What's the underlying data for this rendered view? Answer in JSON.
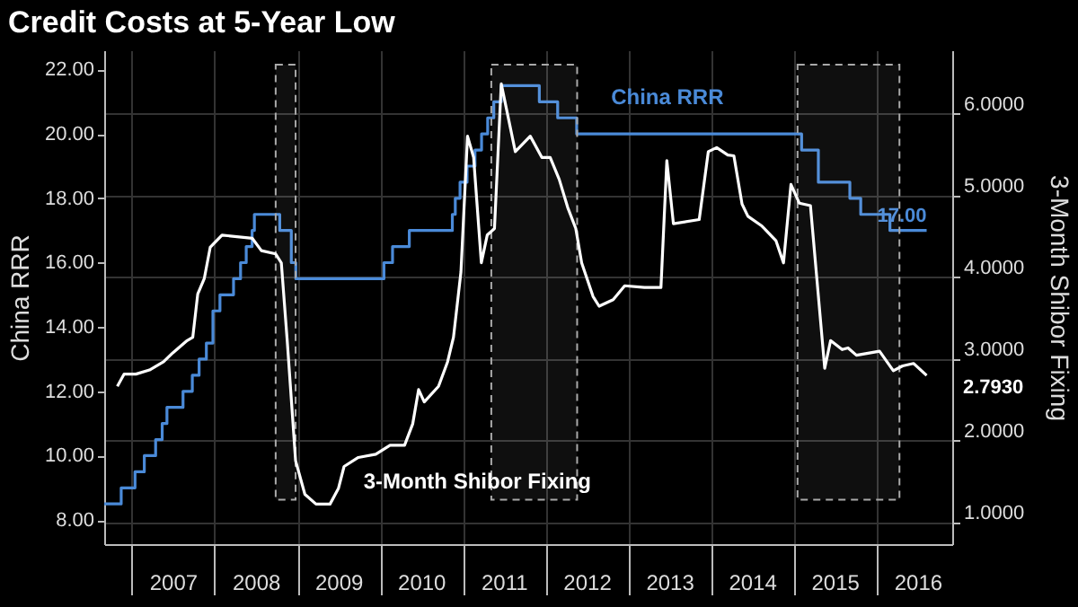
{
  "chart_data": {
    "type": "line",
    "title": "Credit Costs at 5-Year Low",
    "ylabel": "China RRR",
    "y2label": "3-Month Shibor Fixing",
    "xlim": [
      "2006-09-01",
      "2016-12-01"
    ],
    "xticks": [
      {
        "value": "2007-01-01",
        "label": null
      },
      {
        "value": "2007-07-01",
        "label": "2007"
      },
      {
        "value": "2008-01-01",
        "label": null
      },
      {
        "value": "2008-07-01",
        "label": "2008"
      },
      {
        "value": "2009-01-01",
        "label": null
      },
      {
        "value": "2009-07-01",
        "label": "2009"
      },
      {
        "value": "2010-01-01",
        "label": null
      },
      {
        "value": "2010-07-01",
        "label": "2010"
      },
      {
        "value": "2011-01-01",
        "label": null
      },
      {
        "value": "2011-07-01",
        "label": "2011"
      },
      {
        "value": "2012-01-01",
        "label": null
      },
      {
        "value": "2012-07-01",
        "label": "2012"
      },
      {
        "value": "2013-01-01",
        "label": null
      },
      {
        "value": "2013-07-01",
        "label": "2013"
      },
      {
        "value": "2014-01-01",
        "label": null
      },
      {
        "value": "2014-07-01",
        "label": "2014"
      },
      {
        "value": "2015-01-01",
        "label": null
      },
      {
        "value": "2015-07-01",
        "label": "2015"
      },
      {
        "value": "2016-01-01",
        "label": null
      },
      {
        "value": "2016-07-01",
        "label": "2016"
      }
    ],
    "ylim": [
      7.25,
      22.6
    ],
    "yticks": [
      {
        "value": 8,
        "label": "8.00"
      },
      {
        "value": 10,
        "label": "10.00"
      },
      {
        "value": 12,
        "label": "12.00"
      },
      {
        "value": 14,
        "label": "14.00"
      },
      {
        "value": 16,
        "label": "16.00"
      },
      {
        "value": 18,
        "label": "18.00"
      },
      {
        "value": 20,
        "label": "20.00"
      },
      {
        "value": 22,
        "label": "22.00"
      }
    ],
    "y2lim": [
      0.73,
      6.77
    ],
    "y2ticks": [
      {
        "value": 1,
        "label": "1.0000"
      },
      {
        "value": 2,
        "label": "2.0000"
      },
      {
        "value": 3,
        "label": "3.0000"
      },
      {
        "value": 4,
        "label": "4.0000"
      },
      {
        "value": 5,
        "label": "5.0000"
      },
      {
        "value": 6,
        "label": "6.0000"
      }
    ],
    "grid": true,
    "bands": [
      {
        "axis": "x",
        "from": "2008-09-27",
        "to": "2008-12-24"
      },
      {
        "axis": "x",
        "from": "2011-05-07",
        "to": "2012-05-20"
      },
      {
        "axis": "x",
        "from": "2015-01-18",
        "to": "2016-04-12"
      }
    ],
    "series": [
      {
        "name": "China RRR",
        "type": "step",
        "color": "#4a8ad8",
        "x": [
          "2006-09-01",
          "2006-11-15",
          "2007-01-15",
          "2007-02-25",
          "2007-04-16",
          "2007-05-15",
          "2007-06-05",
          "2007-08-15",
          "2007-09-25",
          "2007-10-25",
          "2007-11-26",
          "2007-12-25",
          "2008-01-25",
          "2008-03-25",
          "2008-04-25",
          "2008-05-20",
          "2008-06-15",
          "2008-06-25",
          "2008-10-15",
          "2008-12-05",
          "2008-12-25",
          "2010-01-18",
          "2010-02-25",
          "2010-05-10",
          "2010-11-16",
          "2010-11-29",
          "2010-12-20",
          "2011-01-20",
          "2011-02-24",
          "2011-03-25",
          "2011-04-21",
          "2011-05-18",
          "2011-06-20",
          "2011-12-05",
          "2012-02-24",
          "2012-05-18",
          "2015-02-05",
          "2015-04-20",
          "2015-09-06",
          "2015-10-24",
          "2016-03-01",
          "2016-08-10"
        ],
        "values": [
          8.5,
          9.0,
          9.5,
          10.0,
          10.5,
          11.0,
          11.5,
          12.0,
          12.5,
          13.0,
          13.5,
          14.5,
          15.0,
          15.5,
          16.0,
          16.5,
          17.0,
          17.5,
          17.0,
          16.0,
          15.5,
          16.0,
          16.5,
          17.0,
          17.5,
          18.0,
          18.5,
          19.0,
          19.5,
          20.0,
          20.5,
          21.0,
          21.5,
          21.0,
          20.5,
          20.0,
          19.5,
          18.5,
          18.0,
          17.5,
          17.0,
          17.0
        ],
        "value_labels": [
          null,
          null,
          null,
          null,
          null,
          null,
          null,
          null,
          null,
          null,
          null,
          null,
          null,
          null,
          null,
          null,
          null,
          null,
          null,
          null,
          null,
          null,
          null,
          null,
          null,
          null,
          null,
          null,
          null,
          null,
          null,
          null,
          null,
          null,
          null,
          null,
          null,
          null,
          null,
          null,
          null,
          "17.00"
        ]
      },
      {
        "name": "3-Month Shibor Fixing",
        "type": "line",
        "axis": "y2",
        "color": "#ffffff",
        "x": [
          "2006-10-29",
          "2006-11-28",
          "2007-01-19",
          "2007-03-20",
          "2007-05-21",
          "2007-07-01",
          "2007-09-02",
          "2007-09-27",
          "2007-10-19",
          "2007-11-17",
          "2007-12-13",
          "2008-02-03",
          "2008-06-16",
          "2008-07-26",
          "2008-09-27",
          "2008-10-22",
          "2008-11-17",
          "2008-12-24",
          "2009-02-03",
          "2009-03-24",
          "2009-05-25",
          "2009-07-01",
          "2009-07-26",
          "2009-09-27",
          "2009-12-13",
          "2010-02-14",
          "2010-04-19",
          "2010-05-25",
          "2010-06-20",
          "2010-07-15",
          "2010-09-16",
          "2010-10-26",
          "2010-11-21",
          "2010-12-24",
          "2011-01-22",
          "2011-02-18",
          "2011-03-24",
          "2011-04-19",
          "2011-05-21",
          "2011-06-20",
          "2011-08-21",
          "2011-10-26",
          "2011-12-16",
          "2012-01-22",
          "2012-03-02",
          "2012-04-08",
          "2012-05-14",
          "2012-06-09",
          "2012-07-29",
          "2012-08-25",
          "2012-10-26",
          "2012-12-16",
          "2013-03-13",
          "2013-05-25",
          "2013-06-20",
          "2013-07-19",
          "2013-11-10",
          "2013-12-20",
          "2014-01-26",
          "2014-03-16",
          "2014-04-12",
          "2014-05-18",
          "2014-06-13",
          "2014-08-14",
          "2014-10-15",
          "2014-11-17",
          "2014-12-20",
          "2015-01-26",
          "2015-03-16",
          "2015-05-18",
          "2015-06-13",
          "2015-08-03",
          "2015-08-29",
          "2015-10-05",
          "2016-01-15",
          "2016-03-16",
          "2016-04-26",
          "2016-06-13",
          "2016-08-10"
        ],
        "values": [
          2.66,
          2.81,
          2.81,
          2.86,
          2.96,
          3.07,
          3.22,
          3.26,
          3.79,
          3.98,
          4.36,
          4.51,
          4.47,
          4.32,
          4.28,
          4.17,
          3.22,
          1.75,
          1.34,
          1.22,
          1.22,
          1.41,
          1.68,
          1.79,
          1.83,
          1.94,
          1.94,
          2.2,
          2.62,
          2.47,
          2.66,
          2.96,
          3.26,
          4.06,
          5.72,
          5.46,
          4.17,
          4.51,
          4.59,
          6.36,
          5.53,
          5.72,
          5.46,
          5.46,
          5.19,
          4.85,
          4.59,
          4.17,
          3.76,
          3.64,
          3.72,
          3.89,
          3.87,
          3.87,
          5.42,
          4.65,
          4.7,
          5.53,
          5.58,
          5.49,
          5.48,
          4.89,
          4.74,
          4.62,
          4.44,
          4.17,
          5.13,
          4.9,
          4.87,
          2.88,
          3.22,
          3.11,
          3.13,
          3.04,
          3.09,
          2.85,
          2.91,
          2.94,
          2.793
        ],
        "value_labels": [
          null,
          null,
          null,
          null,
          null,
          null,
          null,
          null,
          null,
          null,
          null,
          null,
          null,
          null,
          null,
          null,
          null,
          null,
          null,
          null,
          null,
          null,
          null,
          null,
          null,
          null,
          null,
          null,
          null,
          null,
          null,
          null,
          null,
          null,
          null,
          null,
          null,
          null,
          null,
          null,
          null,
          null,
          null,
          null,
          null,
          null,
          null,
          null,
          null,
          null,
          null,
          null,
          null,
          null,
          null,
          null,
          null,
          null,
          null,
          null,
          null,
          null,
          null,
          null,
          null,
          null,
          null,
          null,
          null,
          null,
          null,
          null,
          null,
          null,
          null,
          null,
          null,
          null,
          "2.7930"
        ]
      }
    ]
  }
}
